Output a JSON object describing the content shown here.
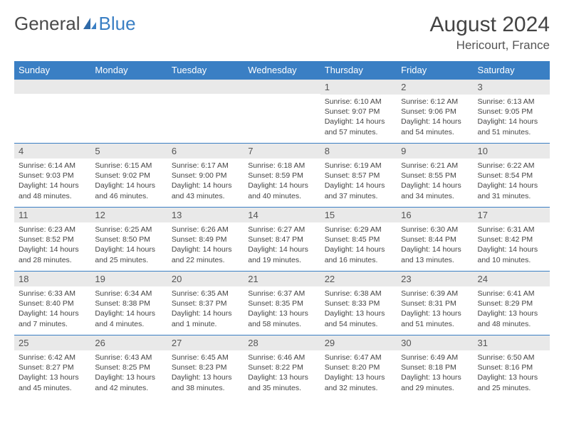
{
  "brand": {
    "part1": "General",
    "part2": "Blue"
  },
  "title": "August 2024",
  "location": "Hericourt, France",
  "colors": {
    "header_bg": "#3a7fc4",
    "header_text": "#ffffff",
    "daynum_bg": "#e9e9e9",
    "border": "#3a7fc4",
    "body_text": "#444444"
  },
  "weekdays": [
    "Sunday",
    "Monday",
    "Tuesday",
    "Wednesday",
    "Thursday",
    "Friday",
    "Saturday"
  ],
  "weeks": [
    [
      {
        "empty": true
      },
      {
        "empty": true
      },
      {
        "empty": true
      },
      {
        "empty": true
      },
      {
        "day": "1",
        "sunrise": "Sunrise: 6:10 AM",
        "sunset": "Sunset: 9:07 PM",
        "daylight": "Daylight: 14 hours and 57 minutes."
      },
      {
        "day": "2",
        "sunrise": "Sunrise: 6:12 AM",
        "sunset": "Sunset: 9:06 PM",
        "daylight": "Daylight: 14 hours and 54 minutes."
      },
      {
        "day": "3",
        "sunrise": "Sunrise: 6:13 AM",
        "sunset": "Sunset: 9:05 PM",
        "daylight": "Daylight: 14 hours and 51 minutes."
      }
    ],
    [
      {
        "day": "4",
        "sunrise": "Sunrise: 6:14 AM",
        "sunset": "Sunset: 9:03 PM",
        "daylight": "Daylight: 14 hours and 48 minutes."
      },
      {
        "day": "5",
        "sunrise": "Sunrise: 6:15 AM",
        "sunset": "Sunset: 9:02 PM",
        "daylight": "Daylight: 14 hours and 46 minutes."
      },
      {
        "day": "6",
        "sunrise": "Sunrise: 6:17 AM",
        "sunset": "Sunset: 9:00 PM",
        "daylight": "Daylight: 14 hours and 43 minutes."
      },
      {
        "day": "7",
        "sunrise": "Sunrise: 6:18 AM",
        "sunset": "Sunset: 8:59 PM",
        "daylight": "Daylight: 14 hours and 40 minutes."
      },
      {
        "day": "8",
        "sunrise": "Sunrise: 6:19 AM",
        "sunset": "Sunset: 8:57 PM",
        "daylight": "Daylight: 14 hours and 37 minutes."
      },
      {
        "day": "9",
        "sunrise": "Sunrise: 6:21 AM",
        "sunset": "Sunset: 8:55 PM",
        "daylight": "Daylight: 14 hours and 34 minutes."
      },
      {
        "day": "10",
        "sunrise": "Sunrise: 6:22 AM",
        "sunset": "Sunset: 8:54 PM",
        "daylight": "Daylight: 14 hours and 31 minutes."
      }
    ],
    [
      {
        "day": "11",
        "sunrise": "Sunrise: 6:23 AM",
        "sunset": "Sunset: 8:52 PM",
        "daylight": "Daylight: 14 hours and 28 minutes."
      },
      {
        "day": "12",
        "sunrise": "Sunrise: 6:25 AM",
        "sunset": "Sunset: 8:50 PM",
        "daylight": "Daylight: 14 hours and 25 minutes."
      },
      {
        "day": "13",
        "sunrise": "Sunrise: 6:26 AM",
        "sunset": "Sunset: 8:49 PM",
        "daylight": "Daylight: 14 hours and 22 minutes."
      },
      {
        "day": "14",
        "sunrise": "Sunrise: 6:27 AM",
        "sunset": "Sunset: 8:47 PM",
        "daylight": "Daylight: 14 hours and 19 minutes."
      },
      {
        "day": "15",
        "sunrise": "Sunrise: 6:29 AM",
        "sunset": "Sunset: 8:45 PM",
        "daylight": "Daylight: 14 hours and 16 minutes."
      },
      {
        "day": "16",
        "sunrise": "Sunrise: 6:30 AM",
        "sunset": "Sunset: 8:44 PM",
        "daylight": "Daylight: 14 hours and 13 minutes."
      },
      {
        "day": "17",
        "sunrise": "Sunrise: 6:31 AM",
        "sunset": "Sunset: 8:42 PM",
        "daylight": "Daylight: 14 hours and 10 minutes."
      }
    ],
    [
      {
        "day": "18",
        "sunrise": "Sunrise: 6:33 AM",
        "sunset": "Sunset: 8:40 PM",
        "daylight": "Daylight: 14 hours and 7 minutes."
      },
      {
        "day": "19",
        "sunrise": "Sunrise: 6:34 AM",
        "sunset": "Sunset: 8:38 PM",
        "daylight": "Daylight: 14 hours and 4 minutes."
      },
      {
        "day": "20",
        "sunrise": "Sunrise: 6:35 AM",
        "sunset": "Sunset: 8:37 PM",
        "daylight": "Daylight: 14 hours and 1 minute."
      },
      {
        "day": "21",
        "sunrise": "Sunrise: 6:37 AM",
        "sunset": "Sunset: 8:35 PM",
        "daylight": "Daylight: 13 hours and 58 minutes."
      },
      {
        "day": "22",
        "sunrise": "Sunrise: 6:38 AM",
        "sunset": "Sunset: 8:33 PM",
        "daylight": "Daylight: 13 hours and 54 minutes."
      },
      {
        "day": "23",
        "sunrise": "Sunrise: 6:39 AM",
        "sunset": "Sunset: 8:31 PM",
        "daylight": "Daylight: 13 hours and 51 minutes."
      },
      {
        "day": "24",
        "sunrise": "Sunrise: 6:41 AM",
        "sunset": "Sunset: 8:29 PM",
        "daylight": "Daylight: 13 hours and 48 minutes."
      }
    ],
    [
      {
        "day": "25",
        "sunrise": "Sunrise: 6:42 AM",
        "sunset": "Sunset: 8:27 PM",
        "daylight": "Daylight: 13 hours and 45 minutes."
      },
      {
        "day": "26",
        "sunrise": "Sunrise: 6:43 AM",
        "sunset": "Sunset: 8:25 PM",
        "daylight": "Daylight: 13 hours and 42 minutes."
      },
      {
        "day": "27",
        "sunrise": "Sunrise: 6:45 AM",
        "sunset": "Sunset: 8:23 PM",
        "daylight": "Daylight: 13 hours and 38 minutes."
      },
      {
        "day": "28",
        "sunrise": "Sunrise: 6:46 AM",
        "sunset": "Sunset: 8:22 PM",
        "daylight": "Daylight: 13 hours and 35 minutes."
      },
      {
        "day": "29",
        "sunrise": "Sunrise: 6:47 AM",
        "sunset": "Sunset: 8:20 PM",
        "daylight": "Daylight: 13 hours and 32 minutes."
      },
      {
        "day": "30",
        "sunrise": "Sunrise: 6:49 AM",
        "sunset": "Sunset: 8:18 PM",
        "daylight": "Daylight: 13 hours and 29 minutes."
      },
      {
        "day": "31",
        "sunrise": "Sunrise: 6:50 AM",
        "sunset": "Sunset: 8:16 PM",
        "daylight": "Daylight: 13 hours and 25 minutes."
      }
    ]
  ]
}
